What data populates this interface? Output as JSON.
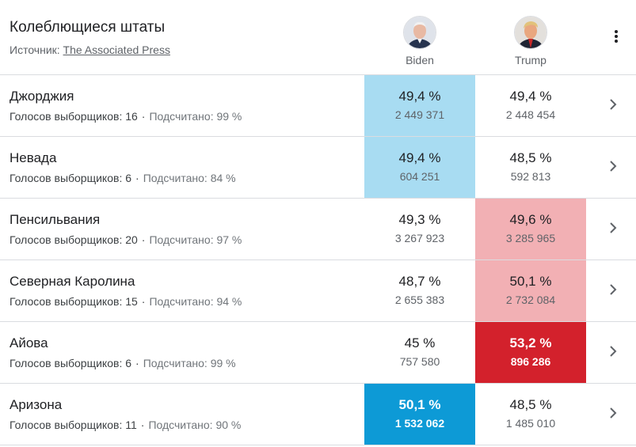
{
  "header": {
    "title": "Колеблющиеся штаты",
    "source_prefix": "Источник:",
    "source_link": "The Associated Press"
  },
  "candidates": [
    {
      "name": "Biden"
    },
    {
      "name": "Trump"
    }
  ],
  "colors": {
    "biden_light": "#a8dcf2",
    "biden_strong": "#0d9ad6",
    "trump_light": "#f2b0b4",
    "trump_strong": "#d3212c",
    "divider": "#dadce0"
  },
  "rows": [
    {
      "state": "Джорджия",
      "electors_label": "Голосов выборщиков: 16",
      "counted_label": "Подсчитано: 99 %",
      "biden": {
        "pct": "49,4 %",
        "votes": "2 449 371"
      },
      "trump": {
        "pct": "49,4 %",
        "votes": "2 448 454"
      },
      "leader": "biden",
      "intensity": "light"
    },
    {
      "state": "Невада",
      "electors_label": "Голосов выборщиков: 6",
      "counted_label": "Подсчитано: 84 %",
      "biden": {
        "pct": "49,4 %",
        "votes": "604 251"
      },
      "trump": {
        "pct": "48,5 %",
        "votes": "592 813"
      },
      "leader": "biden",
      "intensity": "light"
    },
    {
      "state": "Пенсильвания",
      "electors_label": "Голосов выборщиков: 20",
      "counted_label": "Подсчитано: 97 %",
      "biden": {
        "pct": "49,3 %",
        "votes": "3 267 923"
      },
      "trump": {
        "pct": "49,6 %",
        "votes": "3 285 965"
      },
      "leader": "trump",
      "intensity": "light"
    },
    {
      "state": "Северная Каролина",
      "electors_label": "Голосов выборщиков: 15",
      "counted_label": "Подсчитано: 94 %",
      "biden": {
        "pct": "48,7 %",
        "votes": "2 655 383"
      },
      "trump": {
        "pct": "50,1 %",
        "votes": "2 732 084"
      },
      "leader": "trump",
      "intensity": "light"
    },
    {
      "state": "Айова",
      "electors_label": "Голосов выборщиков: 6",
      "counted_label": "Подсчитано: 99 %",
      "biden": {
        "pct": "45 %",
        "votes": "757 580"
      },
      "trump": {
        "pct": "53,2 %",
        "votes": "896 286"
      },
      "leader": "trump",
      "intensity": "strong"
    },
    {
      "state": "Аризона",
      "electors_label": "Голосов выборщиков: 11",
      "counted_label": "Подсчитано: 90 %",
      "biden": {
        "pct": "50,1 %",
        "votes": "1 532 062"
      },
      "trump": {
        "pct": "48,5 %",
        "votes": "1 485 010"
      },
      "leader": "biden",
      "intensity": "strong"
    }
  ]
}
